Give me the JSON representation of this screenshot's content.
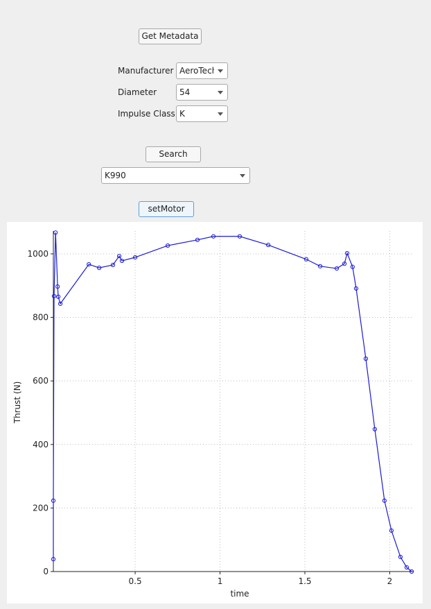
{
  "controls": {
    "get_metadata_button": "Get Metadata",
    "manufacturer": {
      "label": "Manufacturer",
      "value": "AeroTech"
    },
    "diameter": {
      "label": "Diameter",
      "value": "54"
    },
    "impulse_class": {
      "label": "Impulse Class",
      "value": "K"
    },
    "search_button": "Search",
    "motor_select": "K990",
    "set_motor_button": "setMotor"
  },
  "chart_data": {
    "type": "line",
    "x_label": "time",
    "y_label": "Thrust (N)",
    "x": [
      0.018,
      0.018,
      0.022,
      0.031,
      0.043,
      0.047,
      0.059,
      0.227,
      0.288,
      0.369,
      0.406,
      0.422,
      0.5,
      0.692,
      0.867,
      0.961,
      1.116,
      1.284,
      1.508,
      1.59,
      1.688,
      1.733,
      1.749,
      1.781,
      1.802,
      1.859,
      1.912,
      1.969,
      2.01,
      2.063,
      2.1,
      2.129
    ],
    "values": [
      39,
      223,
      867,
      1067,
      897,
      865,
      843,
      967,
      956,
      965,
      993,
      978,
      989,
      1026,
      1044,
      1055,
      1055,
      1028,
      983,
      961,
      954,
      969,
      1002,
      959,
      891,
      670,
      448,
      223,
      129,
      46,
      13,
      0
    ],
    "color": "#1a1ad6",
    "xlim": [
      0.018,
      2.141
    ],
    "ylim": [
      0,
      1072
    ],
    "xticks": [
      0.5,
      1,
      1.5,
      2
    ],
    "yticks": [
      0,
      200,
      400,
      600,
      800,
      1000
    ],
    "grid": true
  }
}
